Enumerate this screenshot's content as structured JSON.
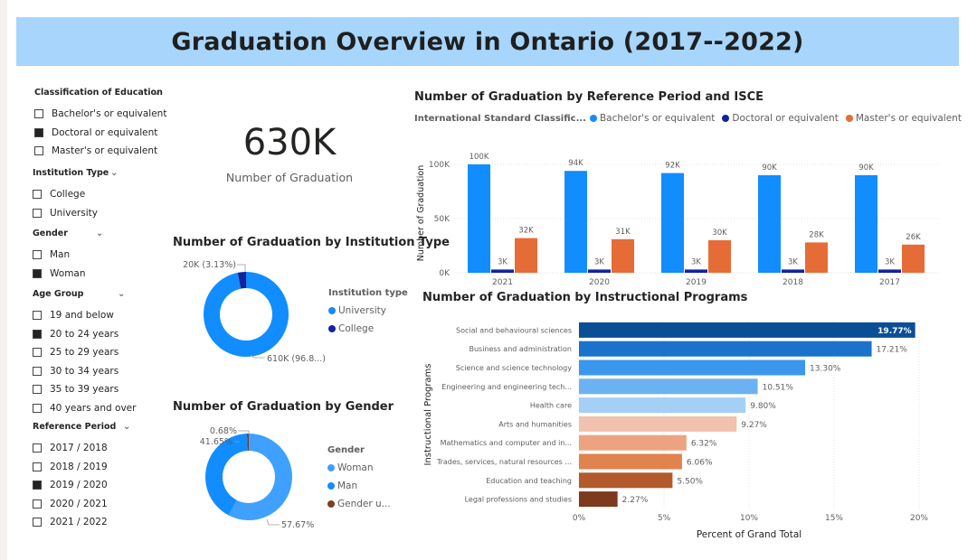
{
  "header": {
    "title": "Graduation Overview in Ontario (2017--2022)"
  },
  "slicers": [
    {
      "title": "Classification of Education",
      "options": [
        {
          "label": "Bachelor's or equivalent",
          "checked": false
        },
        {
          "label": "Doctoral or equivalent",
          "checked": true
        },
        {
          "label": "Master's or equivalent",
          "checked": false
        }
      ]
    },
    {
      "title": "Institution Type",
      "options": [
        {
          "label": "College",
          "checked": false
        },
        {
          "label": "University",
          "checked": false
        }
      ]
    },
    {
      "title": "Gender",
      "options": [
        {
          "label": "Man",
          "checked": false
        },
        {
          "label": "Woman",
          "checked": true
        }
      ]
    },
    {
      "title": "Age Group",
      "options": [
        {
          "label": "19 and below",
          "checked": false
        },
        {
          "label": "20 to 24 years",
          "checked": true
        },
        {
          "label": "25 to 29 years",
          "checked": false
        },
        {
          "label": "30 to 34 years",
          "checked": false
        },
        {
          "label": "35 to 39 years",
          "checked": false
        },
        {
          "label": "40 years and over",
          "checked": false
        }
      ]
    },
    {
      "title": "Reference Period",
      "options": [
        {
          "label": "2017 / 2018",
          "checked": false
        },
        {
          "label": "2018 / 2019",
          "checked": false
        },
        {
          "label": "2019 / 2020",
          "checked": true
        },
        {
          "label": "2020 / 2021",
          "checked": false
        },
        {
          "label": "2021 / 2022",
          "checked": false
        }
      ]
    }
  ],
  "kpi": {
    "value": "630K",
    "label": "Number of Graduation"
  },
  "legends": {
    "institution": {
      "title": "Institution type",
      "items": [
        {
          "label": "University",
          "color": "#118dff"
        },
        {
          "label": "College",
          "color": "#12239e"
        }
      ]
    },
    "gender": {
      "title": "Gender",
      "items": [
        {
          "label": "Woman",
          "color": "#3fa0ff"
        },
        {
          "label": "Man",
          "color": "#118dff"
        },
        {
          "label": "Gender u...",
          "color": "#7d3f1d"
        }
      ]
    },
    "isce": {
      "title": "International Standard Classific...",
      "items": [
        {
          "label": "Bachelor's or equivalent",
          "color": "#118dff"
        },
        {
          "label": "Doctoral or equivalent",
          "color": "#12239e"
        },
        {
          "label": "Master's or equivalent",
          "color": "#e66c37"
        }
      ]
    }
  },
  "chart_data": [
    {
      "id": "isce",
      "type": "bar",
      "title": "Number of Graduation by Reference Period and ISCE",
      "ylabel": "Number of Graduation",
      "xlabel": "",
      "categories": [
        "2021",
        "2020",
        "2019",
        "2018",
        "2017"
      ],
      "series": [
        {
          "name": "Bachelor's or equivalent",
          "color": "#118dff",
          "values": [
            100000,
            94000,
            92000,
            90000,
            90000
          ],
          "labels": [
            "100K",
            "94K",
            "92K",
            "90K",
            "90K"
          ]
        },
        {
          "name": "Doctoral or equivalent",
          "color": "#12239e",
          "values": [
            3000,
            3000,
            3000,
            3000,
            3000
          ],
          "labels": [
            "3K",
            "3K",
            "3K",
            "3K",
            "3K"
          ]
        },
        {
          "name": "Master's or equivalent",
          "color": "#e66c37",
          "values": [
            32000,
            31000,
            30000,
            28000,
            26000
          ],
          "labels": [
            "32K",
            "31K",
            "30K",
            "28K",
            "26K"
          ]
        }
      ],
      "yticks": [
        0,
        50000,
        100000
      ],
      "ytick_labels": [
        "0K",
        "50K",
        "100K"
      ],
      "ylim": [
        0,
        110000
      ],
      "grid": true,
      "legend": "top"
    },
    {
      "id": "institution",
      "type": "pie",
      "title": "Number of Graduation by Institution Type",
      "slices": [
        {
          "name": "University",
          "value": 610000,
          "label": "610K (96.8...)",
          "color": "#118dff"
        },
        {
          "name": "College",
          "value": 20000,
          "label": "20K (3.13%)",
          "color": "#12239e"
        }
      ]
    },
    {
      "id": "gender",
      "type": "pie",
      "title": "Number of Graduation by Gender",
      "slices": [
        {
          "name": "Woman",
          "value": 57.67,
          "label": "57.67%",
          "color": "#3fa0ff"
        },
        {
          "name": "Man",
          "value": 41.65,
          "label": "41.65%",
          "color": "#118dff"
        },
        {
          "name": "Gender u...",
          "value": 0.68,
          "label": "0.68%",
          "color": "#7d3f1d"
        }
      ]
    },
    {
      "id": "programs",
      "type": "bar",
      "title": "Number of Graduation by Instructional Programs",
      "xlabel": "Percent of Grand Total",
      "ylabel": "Instructional Programs",
      "categories": [
        "Social and behavioural sciences",
        "Business and administration",
        "Science and science technology",
        "Engineering and engineering tech...",
        "Health care",
        "Arts and humanities",
        "Mathematics and computer and in...",
        "Trades, services, natural resources ...",
        "Education and teaching",
        "Legal professions and studies"
      ],
      "values": [
        19.77,
        17.21,
        13.3,
        10.51,
        9.8,
        9.27,
        6.32,
        6.06,
        5.5,
        2.27
      ],
      "value_labels": [
        "19.77%",
        "17.21%",
        "13.30%",
        "10.51%",
        "9.80%",
        "9.27%",
        "6.32%",
        "6.06%",
        "5.50%",
        "2.27%"
      ],
      "colors": [
        "#0a4f96",
        "#1a72cc",
        "#3b96ee",
        "#6cb2f2",
        "#a4d0f6",
        "#f1c2ad",
        "#eda37f",
        "#e0834f",
        "#b25a2c",
        "#7d3a1e"
      ],
      "xticks": [
        0,
        5,
        10,
        15,
        20
      ],
      "xtick_labels": [
        "0%",
        "5%",
        "10%",
        "15%",
        "20%"
      ],
      "xlim": [
        0,
        20
      ]
    }
  ]
}
